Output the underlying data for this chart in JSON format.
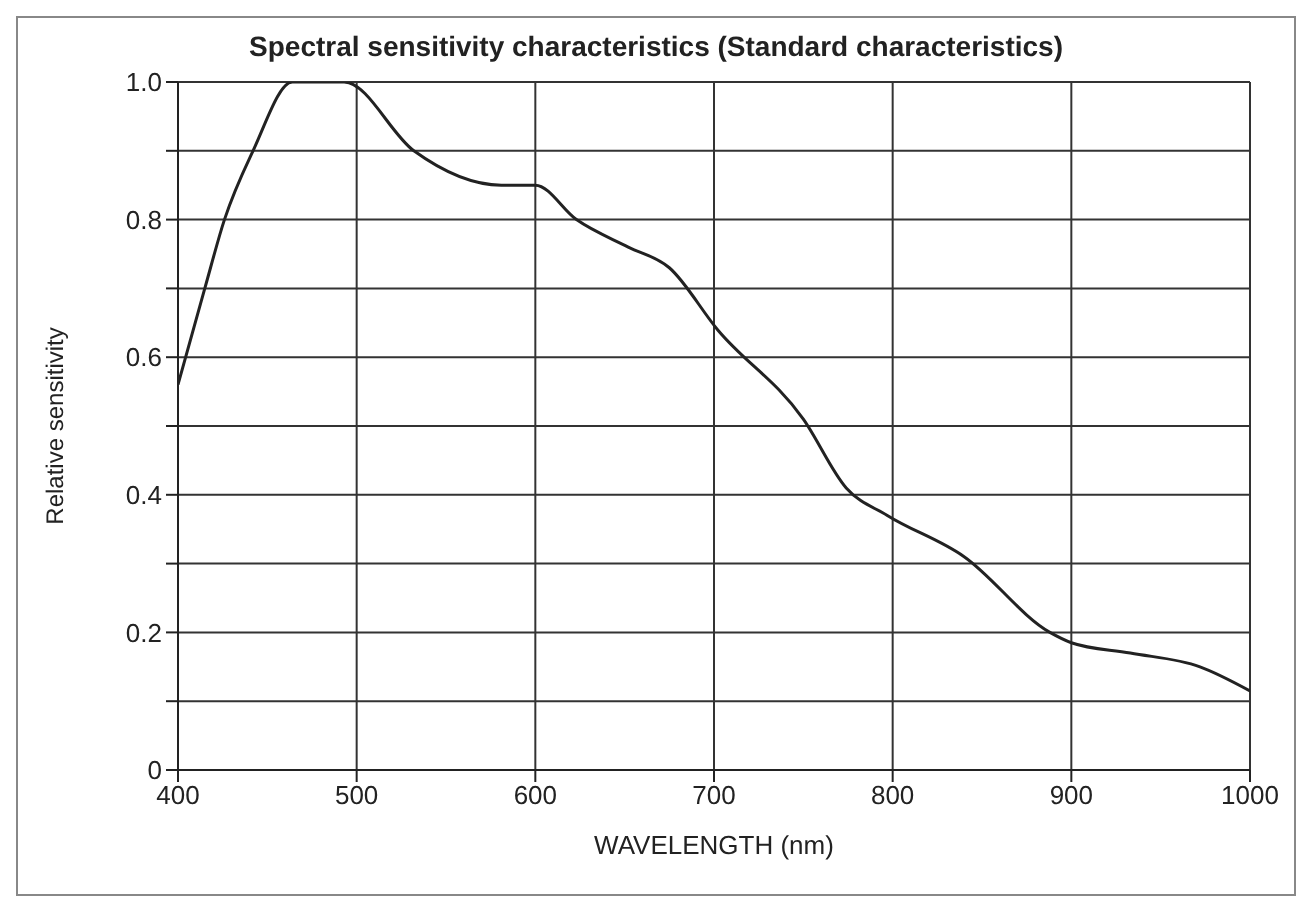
{
  "chart_data": {
    "type": "line",
    "title": "Spectral sensitivity characteristics (Standard characteristics)",
    "xlabel": "WAVELENGTH   (nm)",
    "ylabel": "Relative sensitivity",
    "x": [
      400,
      415,
      426,
      442,
      464,
      478,
      493,
      532,
      581,
      600,
      623,
      652,
      675,
      702,
      750,
      774,
      797,
      840,
      888,
      900,
      933,
      972,
      1000
    ],
    "series": [
      {
        "color": "#222222",
        "values": [
          0.56,
          0.7,
          0.8,
          0.9,
          1.0,
          1.0,
          1.0,
          0.9,
          0.85,
          0.85,
          0.8,
          0.76,
          0.73,
          0.64,
          0.51,
          0.41,
          0.37,
          0.31,
          0.2,
          0.185,
          0.17,
          0.15,
          0.115
        ]
      }
    ],
    "xlim": [
      400,
      1000
    ],
    "xticks": [
      400,
      500,
      600,
      700,
      800,
      900,
      1000
    ],
    "ylim": [
      0,
      1
    ],
    "yticks": [
      0,
      {
        "value": 0.1,
        "label": null
      },
      {
        "value": 0.2,
        "label": "0.2"
      },
      {
        "value": 0.3,
        "label": null
      },
      {
        "value": 0.4,
        "label": "0.4"
      },
      {
        "value": 0.5,
        "label": null
      },
      {
        "value": 0.6,
        "label": "0.6"
      },
      {
        "value": 0.7,
        "label": null
      },
      {
        "value": 0.8,
        "label": "0.8"
      },
      {
        "value": 0.9,
        "label": null
      },
      {
        "value": 1,
        "label": "1.0"
      }
    ],
    "grid": true,
    "marker": "none",
    "line_style": "solid",
    "legend": false
  }
}
